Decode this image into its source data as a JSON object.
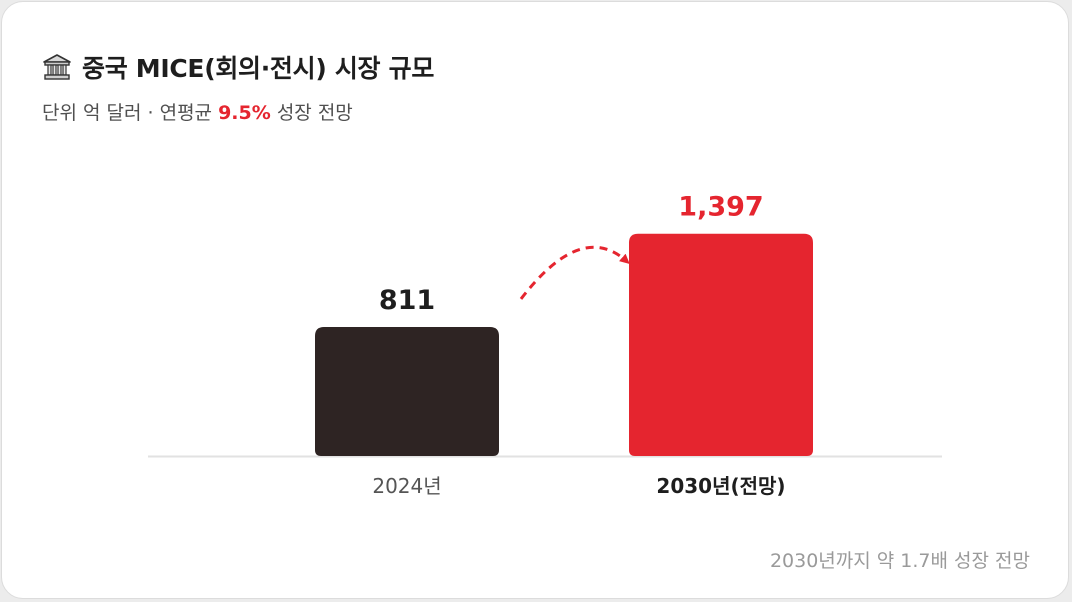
{
  "header": {
    "icon": "bank-building-icon",
    "title": "중국 MICE(회의·전시) 시장 규모",
    "subtitle_prefix": "단위 억 달러 · 연평균 ",
    "subtitle_highlight": "9.5%",
    "subtitle_suffix": " 성장 전망"
  },
  "footnote": "2030년까지 약 1.7배 성장 전망",
  "chart_data": {
    "type": "bar",
    "categories": [
      "2024년",
      "2030년(전망)"
    ],
    "values": [
      811,
      1397
    ],
    "value_labels": [
      "811",
      "1,397"
    ],
    "title": "중국 MICE(회의·전시) 시장 규모",
    "ylabel": "",
    "ylim": [
      0,
      1500
    ],
    "grid": false,
    "colors": [
      "#2e2423",
      "#e5252f"
    ],
    "label_colors": [
      "#1e1e1e",
      "#e5252f"
    ],
    "category_bold": [
      false,
      true
    ],
    "annotation": "dashed-arrow-from-2024-to-2030"
  },
  "colors": {
    "accent": "#e5252f",
    "dark_bar": "#2e2423",
    "baseline": "#e2e2e2"
  }
}
